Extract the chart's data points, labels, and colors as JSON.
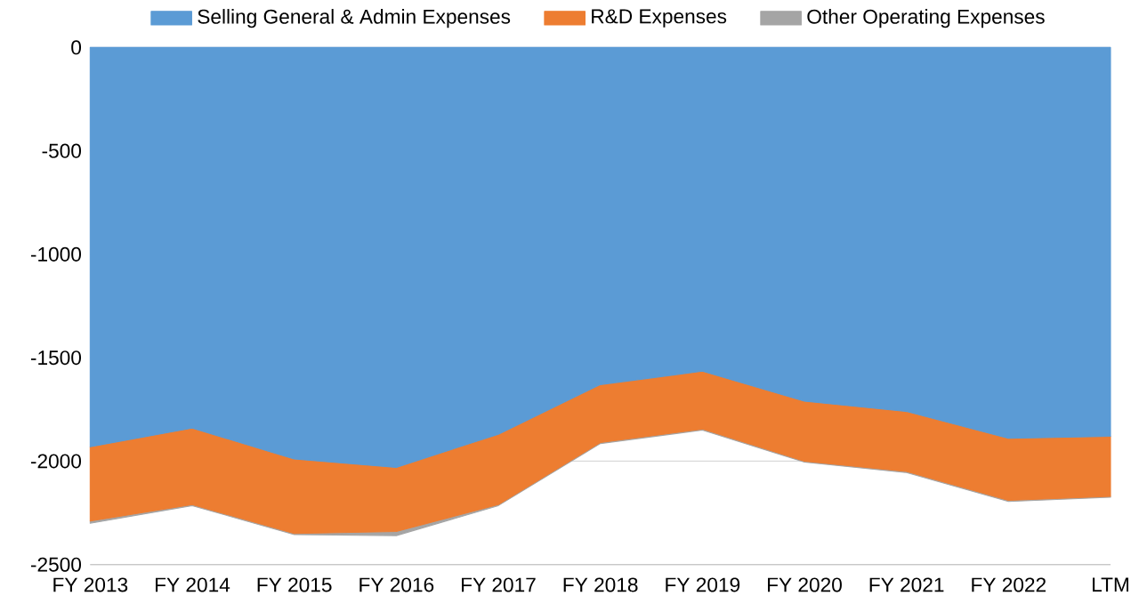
{
  "chart_data": {
    "type": "area",
    "stacked": true,
    "categories": [
      "FY 2013",
      "FY 2014",
      "FY 2015",
      "FY 2016",
      "FY 2017",
      "FY 2018",
      "FY 2019",
      "FY 2020",
      "FY 2021",
      "FY 2022",
      "LTM"
    ],
    "series": [
      {
        "name": "Selling General & Admin Expenses",
        "color": "#5b9bd5",
        "values": [
          -1930,
          -1840,
          -1990,
          -2030,
          -1870,
          -1630,
          -1565,
          -1710,
          -1760,
          -1890,
          -1880
        ]
      },
      {
        "name": "R&D Expenses",
        "color": "#ed7d31",
        "values": [
          -360,
          -370,
          -360,
          -310,
          -340,
          -280,
          -280,
          -290,
          -290,
          -300,
          -290
        ]
      },
      {
        "name": "Other Operating Expenses",
        "color": "#a5a5a5",
        "values": [
          -10,
          -5,
          -5,
          -20,
          -5,
          -5,
          -5,
          -5,
          -5,
          -5,
          -5
        ]
      }
    ],
    "ylim": [
      -2500,
      0
    ],
    "yticks": [
      -2500,
      -2000,
      -1500,
      -1000,
      -500,
      0
    ],
    "grid": "y",
    "legend": "top"
  }
}
